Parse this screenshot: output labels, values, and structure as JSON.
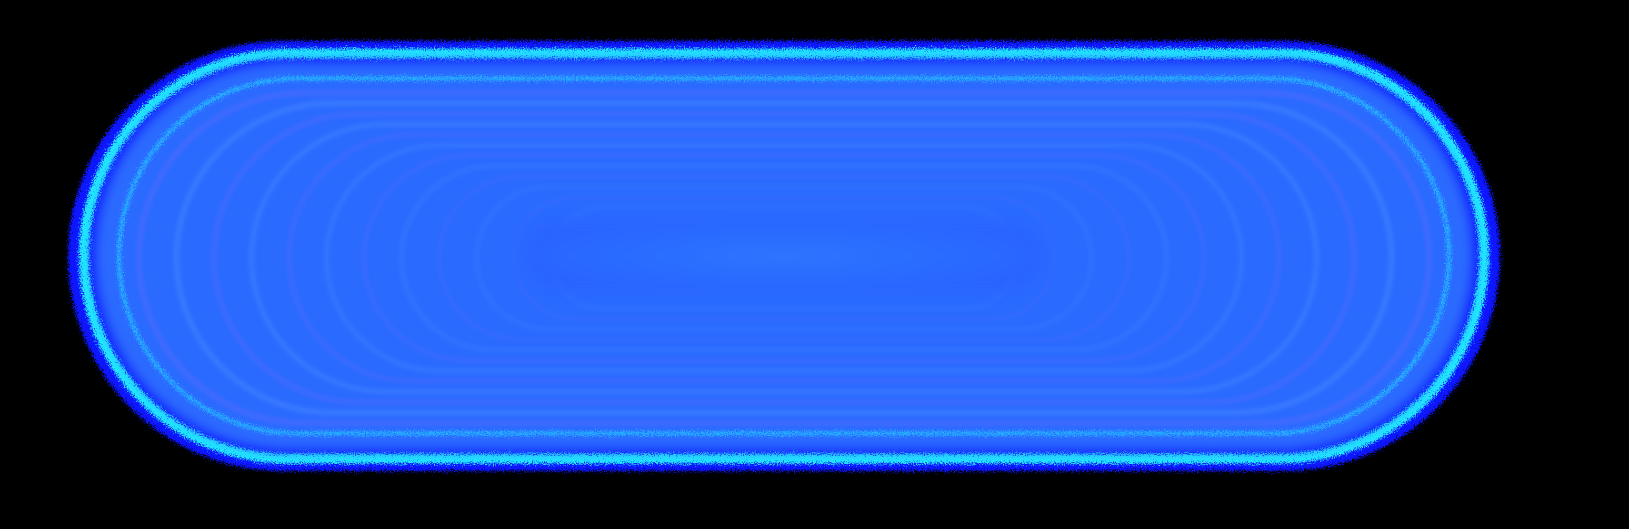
{
  "scene": {
    "background_color": "#000000",
    "shape": "rounded-oval-glow",
    "colors": {
      "outer_edge": "#0a14ff",
      "cyan_rim": "#22e6ff",
      "fill_main": "#2a6bff",
      "fill_center": "#2f7aff",
      "ripple_violet": "#5a6cff",
      "ripple_light": "#4f8dff"
    },
    "ring_count": 12,
    "edge_noise": true
  }
}
